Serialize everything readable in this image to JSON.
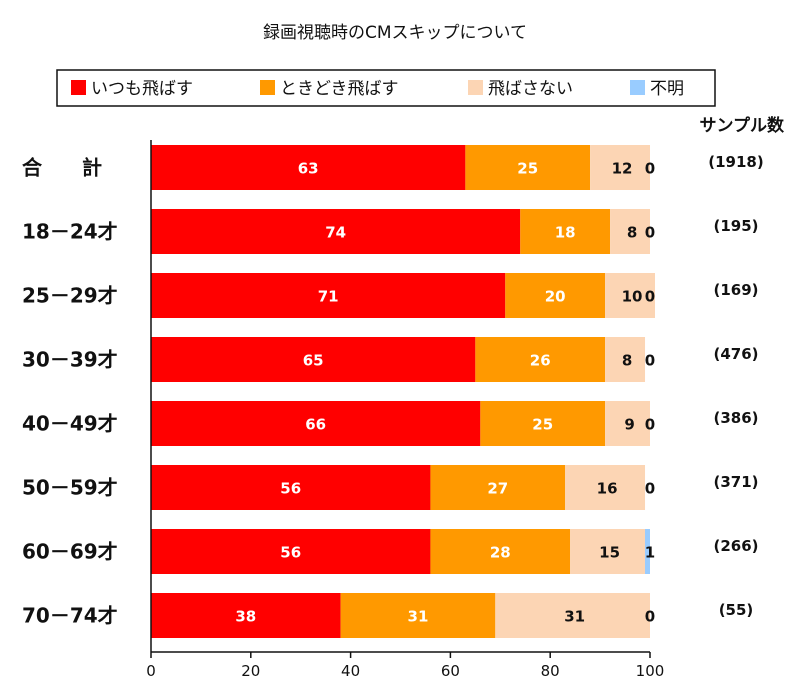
{
  "chart_data": {
    "type": "bar",
    "orientation": "horizontal",
    "stacked": true,
    "title": "録画視聴時のCMスキップについて",
    "categories": [
      "合　　計",
      "18－24才",
      "25－29才",
      "30－39才",
      "40－49才",
      "50－59才",
      "60－69才",
      "70－74才"
    ],
    "series": [
      {
        "name": "いつも飛ばす",
        "color": "#ff0000",
        "label_color": "#ffffff",
        "values": [
          63,
          74,
          71,
          65,
          66,
          56,
          56,
          38
        ]
      },
      {
        "name": "ときどき飛ばす",
        "color": "#ff9900",
        "label_color": "#ffffff",
        "values": [
          25,
          18,
          20,
          26,
          25,
          27,
          28,
          31
        ]
      },
      {
        "name": "飛ばさない",
        "color": "#fcd5b4",
        "label_color": "#111111",
        "values": [
          12,
          8,
          10,
          8,
          9,
          16,
          15,
          31
        ]
      },
      {
        "name": "不明",
        "color": "#99ccff",
        "label_color": "#111111",
        "values": [
          0,
          0,
          0,
          0,
          0,
          0,
          1,
          0
        ]
      }
    ],
    "sample_header": "サンプル数",
    "sample_sizes": [
      "(1918)",
      "(195)",
      "(169)",
      "(476)",
      "(386)",
      "(371)",
      "(266)",
      "(55)"
    ],
    "xlim": [
      0,
      100
    ],
    "xticks": [
      0,
      20,
      40,
      60,
      80,
      100
    ],
    "legend_position": "top",
    "grid": false
  }
}
